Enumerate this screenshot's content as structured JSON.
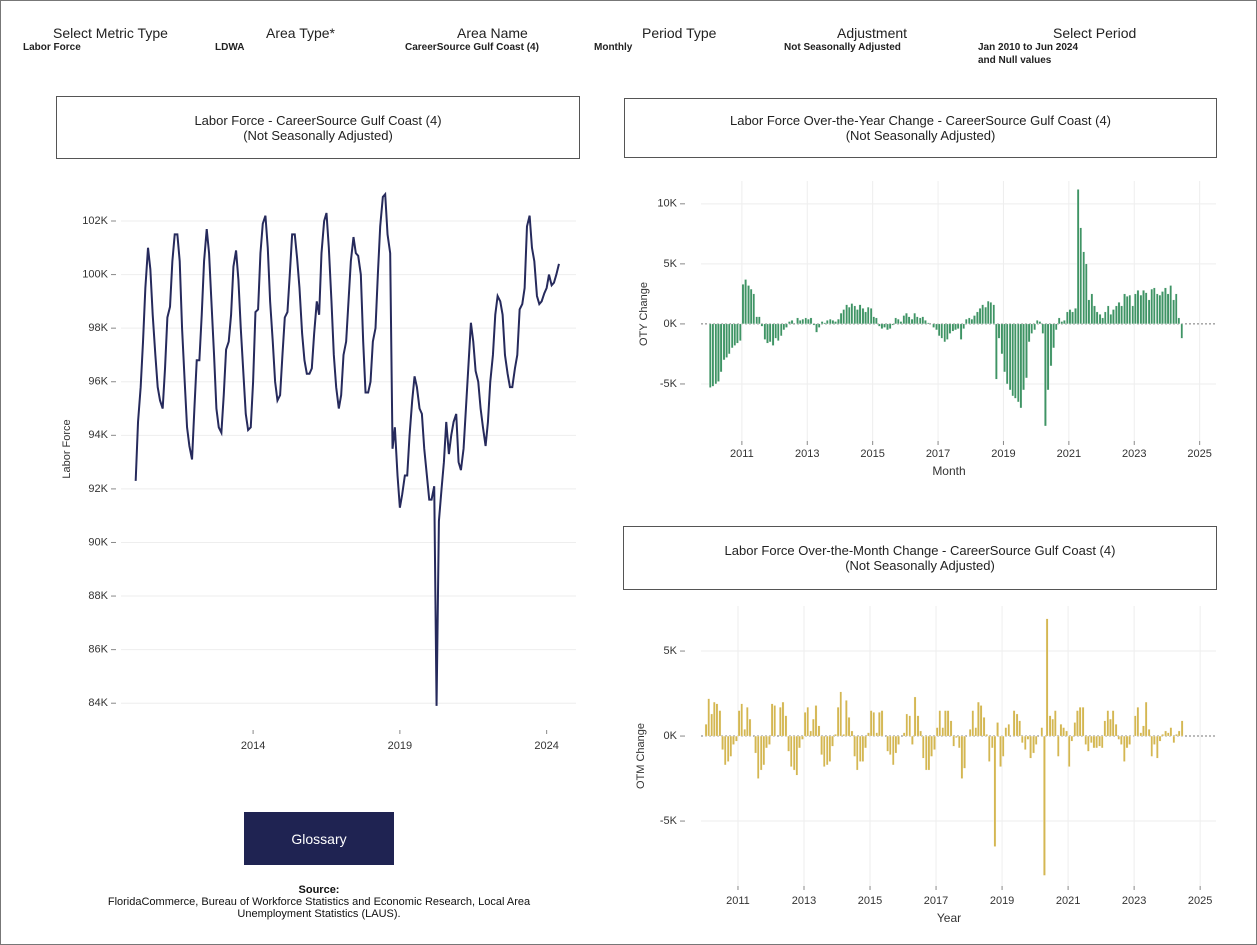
{
  "filters": [
    {
      "label": "Select Metric Type",
      "value": "Labor Force"
    },
    {
      "label": "Area Type*",
      "value": "LDWA"
    },
    {
      "label": "Area Name",
      "value": "CareerSource Gulf Coast (4)"
    },
    {
      "label": "Period Type",
      "value": "Monthly"
    },
    {
      "label": "Adjustment",
      "value": "Not Seasonally Adjusted"
    },
    {
      "label": "Select Period",
      "value": "Jan 2010 to Jun 2024",
      "value2": "and Null values"
    }
  ],
  "glossary": "Glossary",
  "source": {
    "heading": "Source:",
    "text": "FloridaCommerce, Bureau of Workforce Statistics and Economic Research, Local Area Unemployment Statistics (LAUS)."
  },
  "chart_data": [
    {
      "type": "line",
      "title": "Labor Force - CareerSource Gulf Coast (4)",
      "subtitle": "(Not Seasonally Adjusted)",
      "y_label": "Labor Force",
      "color": "#262a5c",
      "grid": "y",
      "xlim": [
        2009.5,
        2025
      ],
      "xticks": [
        2014,
        2019,
        2024
      ],
      "ylim": [
        83000,
        103400
      ],
      "yticks": [
        {
          "value": 84000,
          "label": "84K"
        },
        {
          "value": 86000,
          "label": "86K"
        },
        {
          "value": 88000,
          "label": "88K"
        },
        {
          "value": 90000,
          "label": "90K"
        },
        {
          "value": 92000,
          "label": "92K"
        },
        {
          "value": 94000,
          "label": "94K"
        },
        {
          "value": 96000,
          "label": "96K"
        },
        {
          "value": 98000,
          "label": "98K"
        },
        {
          "value": 100000,
          "label": "100K"
        },
        {
          "value": 102000,
          "label": "102K"
        }
      ],
      "x": [
        2010,
        2010.08,
        2010.17,
        2010.25,
        2010.33,
        2010.42,
        2010.5,
        2010.58,
        2010.67,
        2010.75,
        2010.83,
        2010.92,
        2011,
        2011.08,
        2011.17,
        2011.25,
        2011.33,
        2011.42,
        2011.5,
        2011.58,
        2011.67,
        2011.75,
        2011.83,
        2011.92,
        2012,
        2012.08,
        2012.17,
        2012.25,
        2012.33,
        2012.42,
        2012.5,
        2012.58,
        2012.67,
        2012.75,
        2012.83,
        2012.92,
        2013,
        2013.08,
        2013.17,
        2013.25,
        2013.33,
        2013.42,
        2013.5,
        2013.58,
        2013.67,
        2013.75,
        2013.83,
        2013.92,
        2014,
        2014.08,
        2014.17,
        2014.25,
        2014.33,
        2014.42,
        2014.5,
        2014.58,
        2014.67,
        2014.75,
        2014.83,
        2014.92,
        2015,
        2015.08,
        2015.17,
        2015.25,
        2015.33,
        2015.42,
        2015.5,
        2015.58,
        2015.67,
        2015.75,
        2015.83,
        2015.92,
        2016,
        2016.08,
        2016.17,
        2016.25,
        2016.33,
        2016.42,
        2016.5,
        2016.58,
        2016.67,
        2016.75,
        2016.83,
        2016.92,
        2017,
        2017.08,
        2017.17,
        2017.25,
        2017.33,
        2017.42,
        2017.5,
        2017.58,
        2017.67,
        2017.75,
        2017.83,
        2017.92,
        2018,
        2018.08,
        2018.17,
        2018.25,
        2018.33,
        2018.42,
        2018.5,
        2018.58,
        2018.67,
        2018.75,
        2018.83,
        2018.92,
        2019,
        2019.08,
        2019.17,
        2019.25,
        2019.33,
        2019.42,
        2019.5,
        2019.58,
        2019.67,
        2019.75,
        2019.83,
        2019.92,
        2020,
        2020.08,
        2020.17,
        2020.25,
        2020.33,
        2020.42,
        2020.5,
        2020.58,
        2020.67,
        2020.75,
        2020.83,
        2020.92,
        2021,
        2021.08,
        2021.17,
        2021.25,
        2021.33,
        2021.42,
        2021.5,
        2021.58,
        2021.67,
        2021.75,
        2021.83,
        2021.92,
        2022,
        2022.08,
        2022.17,
        2022.25,
        2022.33,
        2022.42,
        2022.5,
        2022.58,
        2022.67,
        2022.75,
        2022.83,
        2022.92,
        2023,
        2023.08,
        2023.17,
        2023.25,
        2023.33,
        2023.42,
        2023.5,
        2023.58,
        2023.67,
        2023.75,
        2023.83,
        2023.92,
        2024,
        2024.08,
        2024.17,
        2024.25,
        2024.33,
        2024.42
      ],
      "values": [
        92300,
        94500,
        95800,
        97500,
        99500,
        101000,
        100200,
        98500,
        97000,
        95800,
        95300,
        95000,
        96500,
        98400,
        98800,
        100500,
        101500,
        101500,
        100500,
        98000,
        96000,
        94300,
        93600,
        93100,
        95000,
        96800,
        96800,
        98500,
        100500,
        101700,
        100800,
        99000,
        97000,
        95000,
        94300,
        94100,
        95500,
        97200,
        97500,
        98500,
        100300,
        100900,
        99800,
        98000,
        96300,
        94800,
        94200,
        94300,
        96000,
        98600,
        98700,
        100800,
        101900,
        102200,
        101000,
        99000,
        97500,
        96000,
        95300,
        95500,
        97000,
        98400,
        98600,
        100000,
        101500,
        101500,
        100600,
        99500,
        97800,
        96800,
        96300,
        96300,
        96500,
        97800,
        99000,
        98500,
        100800,
        102000,
        102300,
        101000,
        99000,
        97000,
        95800,
        95000,
        95500,
        97000,
        97500,
        99000,
        100500,
        101400,
        100800,
        100700,
        100000,
        97500,
        95600,
        95600,
        96000,
        97500,
        98000,
        100000,
        101800,
        102900,
        103000,
        101500,
        100800,
        93500,
        94300,
        92500,
        91300,
        91800,
        92500,
        92500,
        94000,
        95300,
        96200,
        95800,
        95000,
        94800,
        93500,
        92500,
        91600,
        91600,
        92100,
        83900,
        90800,
        92000,
        93000,
        94500,
        93300,
        94000,
        94500,
        94800,
        93000,
        92700,
        93500,
        95000,
        96500,
        98200,
        97500,
        96400,
        96000,
        95000,
        94300,
        93600,
        94500,
        96000,
        97000,
        98500,
        99200,
        99000,
        98500,
        97000,
        96300,
        95800,
        95800,
        96500,
        97000,
        98700,
        98900,
        99500,
        101800,
        102200,
        101000,
        100500,
        99200,
        98900,
        99000,
        99300,
        99500,
        100000,
        99600,
        99700,
        100000,
        100400
      ]
    },
    {
      "type": "bar",
      "title": "Labor Force Over-the-Year Change - CareerSource Gulf Coast (4)",
      "subtitle": "(Not Seasonally Adjusted)",
      "y_label": "OTY Change",
      "x_label": "Month",
      "color": "#3f9465",
      "grid": "both",
      "xlim": [
        2009.75,
        2025.5
      ],
      "xticks": [
        2011,
        2013,
        2015,
        2017,
        2019,
        2021,
        2023,
        2025
      ],
      "ylim": [
        -9750,
        11900
      ],
      "yticks": [
        {
          "value": -5000,
          "label": "-5K"
        },
        {
          "value": 0,
          "label": "0K"
        },
        {
          "value": 5000,
          "label": "5K"
        },
        {
          "value": 10000,
          "label": "10K"
        }
      ],
      "x": [
        2010,
        2010.08,
        2010.17,
        2010.25,
        2010.33,
        2010.42,
        2010.5,
        2010.58,
        2010.67,
        2010.75,
        2010.83,
        2010.92,
        2011,
        2011.08,
        2011.17,
        2011.25,
        2011.33,
        2011.42,
        2011.5,
        2011.58,
        2011.67,
        2011.75,
        2011.83,
        2011.92,
        2012,
        2012.08,
        2012.17,
        2012.25,
        2012.33,
        2012.42,
        2012.5,
        2012.58,
        2012.67,
        2012.75,
        2012.83,
        2012.92,
        2013,
        2013.08,
        2013.17,
        2013.25,
        2013.33,
        2013.42,
        2013.5,
        2013.58,
        2013.67,
        2013.75,
        2013.83,
        2013.92,
        2014,
        2014.08,
        2014.17,
        2014.25,
        2014.33,
        2014.42,
        2014.5,
        2014.58,
        2014.67,
        2014.75,
        2014.83,
        2014.92,
        2015,
        2015.08,
        2015.17,
        2015.25,
        2015.33,
        2015.42,
        2015.5,
        2015.58,
        2015.67,
        2015.75,
        2015.83,
        2015.92,
        2016,
        2016.08,
        2016.17,
        2016.25,
        2016.33,
        2016.42,
        2016.5,
        2016.58,
        2016.67,
        2016.75,
        2016.83,
        2016.92,
        2017,
        2017.08,
        2017.17,
        2017.25,
        2017.33,
        2017.42,
        2017.5,
        2017.58,
        2017.67,
        2017.75,
        2017.83,
        2017.92,
        2018,
        2018.08,
        2018.17,
        2018.25,
        2018.33,
        2018.42,
        2018.5,
        2018.58,
        2018.67,
        2018.75,
        2018.83,
        2018.92,
        2019,
        2019.08,
        2019.17,
        2019.25,
        2019.33,
        2019.42,
        2019.5,
        2019.58,
        2019.67,
        2019.75,
        2019.83,
        2019.92,
        2020,
        2020.08,
        2020.17,
        2020.25,
        2020.33,
        2020.42,
        2020.5,
        2020.58,
        2020.67,
        2020.75,
        2020.83,
        2020.92,
        2021,
        2021.08,
        2021.17,
        2021.25,
        2021.33,
        2021.42,
        2021.5,
        2021.58,
        2021.67,
        2021.75,
        2021.83,
        2021.92,
        2022,
        2022.08,
        2022.17,
        2022.25,
        2022.33,
        2022.42,
        2022.5,
        2022.58,
        2022.67,
        2022.75,
        2022.83,
        2022.92,
        2023,
        2023.08,
        2023.17,
        2023.25,
        2023.33,
        2023.42,
        2023.5,
        2023.58,
        2023.67,
        2023.75,
        2023.83,
        2023.92,
        2024,
        2024.08,
        2024.17,
        2024.25,
        2024.33,
        2024.42
      ],
      "values": [
        -5300,
        -5200,
        -5000,
        -4800,
        -4000,
        -3000,
        -2800,
        -2500,
        -2000,
        -1800,
        -1600,
        -1400,
        3300,
        3700,
        3200,
        2900,
        2500,
        600,
        600,
        -200,
        -1300,
        -1600,
        -1500,
        -1800,
        -1200,
        -1400,
        -1000,
        -500,
        -300,
        200,
        300,
        0,
        500,
        300,
        400,
        500,
        400,
        500,
        -100,
        -700,
        -300,
        200,
        100,
        300,
        400,
        300,
        200,
        400,
        900,
        1200,
        1600,
        1400,
        1700,
        1500,
        1200,
        1600,
        1300,
        1000,
        1400,
        1300,
        600,
        500,
        -200,
        -400,
        -300,
        -500,
        -400,
        -100,
        500,
        400,
        200,
        700,
        900,
        600,
        400,
        900,
        600,
        500,
        600,
        300,
        100,
        0,
        -300,
        -500,
        -1000,
        -1200,
        -1500,
        -1300,
        -800,
        -600,
        -500,
        -400,
        -1300,
        -400,
        400,
        500,
        400,
        700,
        1000,
        1300,
        1600,
        1400,
        1900,
        1800,
        1600,
        -4600,
        -1200,
        -2500,
        -4000,
        -5000,
        -5500,
        -6000,
        -6200,
        -6500,
        -7000,
        -5500,
        -4500,
        -1500,
        -800,
        -500,
        300,
        200,
        -800,
        -8500,
        -5500,
        -3500,
        -2000,
        -500,
        500,
        200,
        300,
        1000,
        1200,
        1000,
        1300,
        11200,
        8000,
        6000,
        5000,
        2000,
        2500,
        1500,
        1000,
        800,
        500,
        1000,
        1500,
        800,
        1200,
        1500,
        1800,
        1500,
        2500,
        2300,
        2400,
        1500,
        2500,
        2800,
        2400,
        2800,
        2600,
        2000,
        2900,
        3000,
        2500,
        2400,
        2700,
        3000,
        2500,
        3200,
        2000,
        2500,
        500,
        -1200
      ]
    },
    {
      "type": "bar",
      "title": "Labor Force Over-the-Month Change - CareerSource Gulf Coast (4)",
      "subtitle": "(Not Seasonally Adjusted)",
      "y_label": "OTM Change",
      "x_label": "Year",
      "color": "#d4b752",
      "grid": "both",
      "xlim": [
        2009.88,
        2025.48
      ],
      "xticks": [
        2011,
        2013,
        2015,
        2017,
        2019,
        2021,
        2023,
        2025
      ],
      "ylim": [
        -8820,
        7650
      ],
      "yticks": [
        {
          "value": -5000,
          "label": "-5K"
        },
        {
          "value": 0,
          "label": "0K"
        },
        {
          "value": 5000,
          "label": "5K"
        }
      ],
      "x": [
        2010,
        2010.08,
        2010.17,
        2010.25,
        2010.33,
        2010.42,
        2010.5,
        2010.58,
        2010.67,
        2010.75,
        2010.83,
        2010.92,
        2011,
        2011.08,
        2011.17,
        2011.25,
        2011.33,
        2011.42,
        2011.5,
        2011.58,
        2011.67,
        2011.75,
        2011.83,
        2011.92,
        2012,
        2012.08,
        2012.17,
        2012.25,
        2012.33,
        2012.42,
        2012.5,
        2012.58,
        2012.67,
        2012.75,
        2012.83,
        2012.92,
        2013,
        2013.08,
        2013.17,
        2013.25,
        2013.33,
        2013.42,
        2013.5,
        2013.58,
        2013.67,
        2013.75,
        2013.83,
        2013.92,
        2014,
        2014.08,
        2014.17,
        2014.25,
        2014.33,
        2014.42,
        2014.5,
        2014.58,
        2014.67,
        2014.75,
        2014.83,
        2014.92,
        2015,
        2015.08,
        2015.17,
        2015.25,
        2015.33,
        2015.42,
        2015.5,
        2015.58,
        2015.67,
        2015.75,
        2015.83,
        2015.92,
        2016,
        2016.08,
        2016.17,
        2016.25,
        2016.33,
        2016.42,
        2016.5,
        2016.58,
        2016.67,
        2016.75,
        2016.83,
        2016.92,
        2017,
        2017.08,
        2017.17,
        2017.25,
        2017.33,
        2017.42,
        2017.5,
        2017.58,
        2017.67,
        2017.75,
        2017.83,
        2017.92,
        2018,
        2018.08,
        2018.17,
        2018.25,
        2018.33,
        2018.42,
        2018.5,
        2018.58,
        2018.67,
        2018.75,
        2018.83,
        2018.92,
        2019,
        2019.08,
        2019.17,
        2019.25,
        2019.33,
        2019.42,
        2019.5,
        2019.58,
        2019.67,
        2019.75,
        2019.83,
        2019.92,
        2020,
        2020.08,
        2020.17,
        2020.25,
        2020.33,
        2020.42,
        2020.5,
        2020.58,
        2020.67,
        2020.75,
        2020.83,
        2020.92,
        2021,
        2021.08,
        2021.17,
        2021.25,
        2021.33,
        2021.42,
        2021.5,
        2021.58,
        2021.67,
        2021.75,
        2021.83,
        2021.92,
        2022,
        2022.08,
        2022.17,
        2022.25,
        2022.33,
        2022.42,
        2022.5,
        2022.58,
        2022.67,
        2022.75,
        2022.83,
        2022.92,
        2023,
        2023.08,
        2023.17,
        2023.25,
        2023.33,
        2023.42,
        2023.5,
        2023.58,
        2023.67,
        2023.75,
        2023.83,
        2023.92,
        2024,
        2024.08,
        2024.17,
        2024.25,
        2024.33,
        2024.42
      ],
      "values": [
        700,
        2200,
        1300,
        2000,
        1900,
        1500,
        -800,
        -1700,
        -1500,
        -1200,
        -500,
        -300,
        1500,
        1900,
        400,
        1700,
        1000,
        0,
        -1000,
        -2500,
        -2000,
        -1700,
        -700,
        -500,
        1900,
        1800,
        0,
        1700,
        2000,
        1200,
        -900,
        -1800,
        -2000,
        -2300,
        -700,
        -200,
        1400,
        1700,
        300,
        1000,
        1800,
        600,
        -1100,
        -1800,
        -1700,
        -1500,
        -600,
        100,
        1700,
        2600,
        100,
        2100,
        1100,
        300,
        -1200,
        -2000,
        -1500,
        -1500,
        -700,
        200,
        1500,
        1400,
        200,
        1400,
        1500,
        0,
        -900,
        -1100,
        -1700,
        -1000,
        -500,
        0,
        200,
        1300,
        1200,
        -500,
        2300,
        1200,
        300,
        -1300,
        -2000,
        -2000,
        -1200,
        -800,
        500,
        1500,
        500,
        1500,
        1500,
        900,
        -600,
        -100,
        -700,
        -2500,
        -1900,
        0,
        400,
        1500,
        500,
        2000,
        1800,
        1100,
        100,
        -1500,
        -700,
        -6500,
        800,
        -1800,
        -1200,
        500,
        700,
        0,
        1500,
        1300,
        900,
        -400,
        -800,
        -200,
        -1300,
        -1000,
        -500,
        0,
        500,
        -8200,
        6900,
        1200,
        1000,
        1500,
        -1200,
        700,
        500,
        300,
        -1800,
        -300,
        800,
        1500,
        1700,
        1700,
        -500,
        -900,
        -400,
        -700,
        -700,
        -600,
        -700,
        900,
        1500,
        1000,
        1500,
        700,
        -200,
        -500,
        -1500,
        -700,
        -500,
        0,
        1200,
        1700,
        200,
        600,
        2000,
        400,
        -1200,
        -500,
        -1300,
        -300,
        100,
        300,
        200,
        500,
        -400,
        100,
        300,
        900
      ]
    }
  ]
}
